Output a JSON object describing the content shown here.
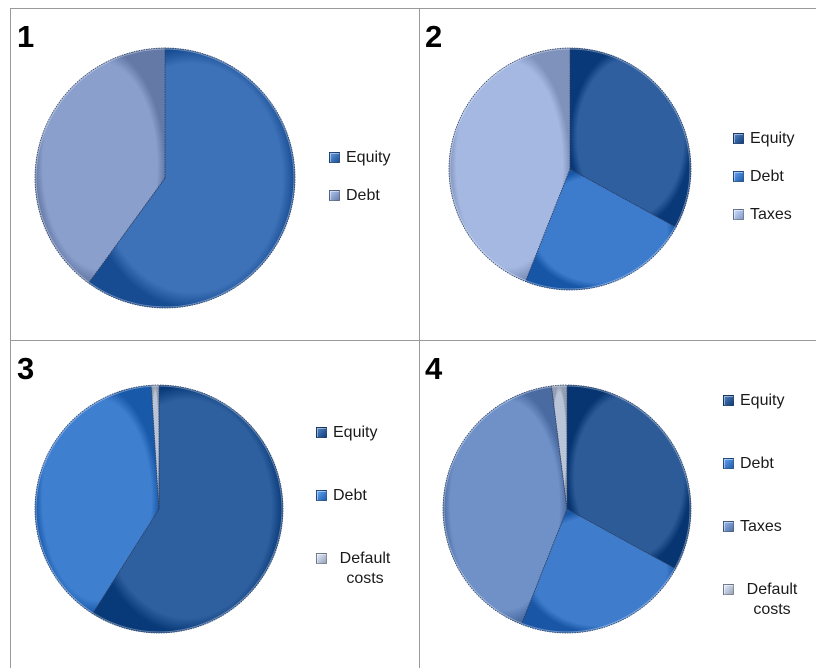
{
  "panels": [
    {
      "number": "1",
      "legend": [
        "Equity",
        "Debt"
      ],
      "colors": [
        "#3d72b8",
        "#8a9fcc"
      ]
    },
    {
      "number": "2",
      "legend": [
        "Equity",
        "Debt",
        "Taxes"
      ],
      "colors": [
        "#2f5f9f",
        "#3d7bcc",
        "#a4b8e2"
      ]
    },
    {
      "number": "3",
      "legend": [
        "Equity",
        "Debt",
        "Default costs"
      ],
      "colors": [
        "#2e5f9e",
        "#3f7fd0",
        "#b9c4d8"
      ]
    },
    {
      "number": "4",
      "legend": [
        "Equity",
        "Debt",
        "Taxes",
        "Default costs"
      ],
      "colors": [
        "#2d5b98",
        "#3f7dcc",
        "#6f91c8",
        "#b9c4d8"
      ]
    }
  ],
  "chart_data": [
    {
      "type": "pie",
      "title": "",
      "labels": [
        "Equity",
        "Debt"
      ],
      "values": [
        60,
        40
      ],
      "legend_position": "right"
    },
    {
      "type": "pie",
      "title": "",
      "labels": [
        "Equity",
        "Debt",
        "Taxes"
      ],
      "values": [
        33,
        23,
        44
      ],
      "legend_position": "right"
    },
    {
      "type": "pie",
      "title": "",
      "labels": [
        "Equity",
        "Debt",
        "Default costs"
      ],
      "values": [
        59,
        40,
        1
      ],
      "legend_position": "right"
    },
    {
      "type": "pie",
      "title": "",
      "labels": [
        "Equity",
        "Debt",
        "Taxes",
        "Default costs"
      ],
      "values": [
        33,
        23,
        42,
        2
      ],
      "legend_position": "right"
    }
  ]
}
